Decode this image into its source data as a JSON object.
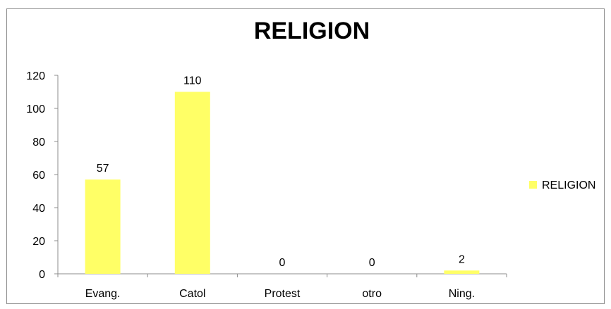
{
  "chart_data": {
    "type": "bar",
    "title": "RELIGION",
    "xlabel": "",
    "ylabel": "",
    "categories": [
      "Evang.",
      "Catol",
      "Protest",
      "otro",
      "Ning."
    ],
    "series": [
      {
        "name": "RELIGION",
        "values": [
          57,
          110,
          0,
          0,
          2
        ]
      }
    ],
    "ylim": [
      0,
      120
    ],
    "yticks": [
      "0",
      "20",
      "40",
      "60",
      "80",
      "100",
      "120"
    ],
    "grid": false,
    "legend": "right",
    "bar_color": "#ffff66",
    "data_labels": [
      "57",
      "110",
      "0",
      "0",
      "2"
    ]
  }
}
